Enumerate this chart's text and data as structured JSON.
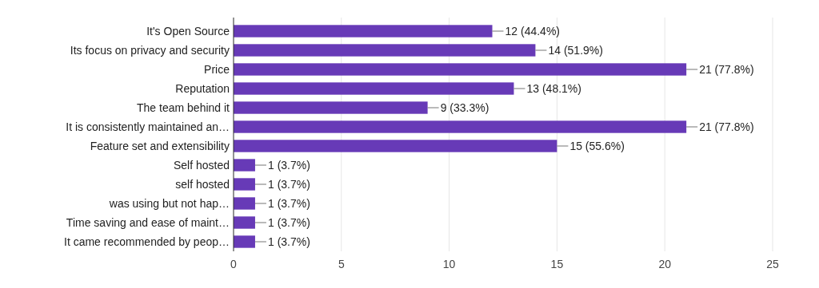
{
  "chart_data": {
    "type": "bar",
    "orientation": "horizontal",
    "categories": [
      "It's Open Source",
      "Its focus on privacy and security",
      "Price",
      "Reputation",
      "The team behind it",
      "It is consistently maintained an…",
      "Feature set and extensibility",
      "Self hosted",
      "self hosted",
      "was using but not hap…",
      "Time saving and ease of maint…",
      "It came recommended by peop…"
    ],
    "values": [
      12,
      14,
      21,
      13,
      9,
      21,
      15,
      1,
      1,
      1,
      1,
      1
    ],
    "value_labels": [
      "12 (44.4%)",
      "14 (51.9%)",
      "21 (77.8%)",
      "13 (48.1%)",
      "9 (33.3%)",
      "21 (77.8%)",
      "15 (55.6%)",
      "1 (3.7%)",
      "1 (3.7%)",
      "1 (3.7%)",
      "1 (3.7%)",
      "1 (3.7%)"
    ],
    "color": "#673ab7",
    "xlim": [
      0,
      25
    ],
    "xticks": [
      0,
      5,
      10,
      15,
      20,
      25
    ],
    "grid": "x"
  }
}
